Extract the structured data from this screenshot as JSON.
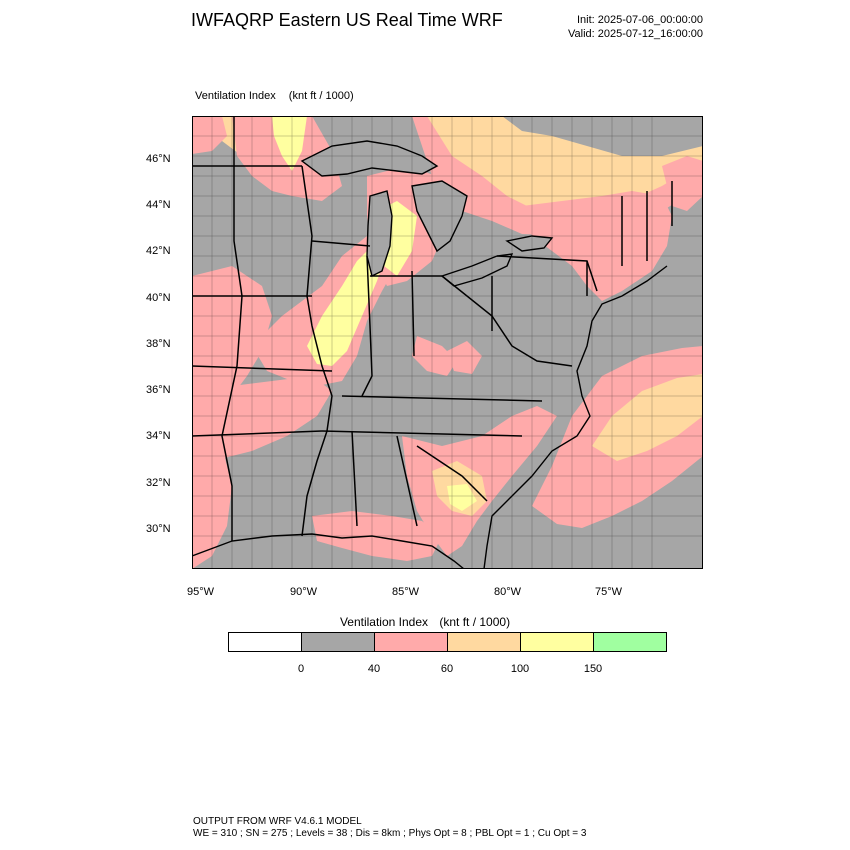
{
  "header": {
    "title": "IWFAQRP Eastern US Real Time WRF",
    "init": "Init: 2025-07-06_00:00:00",
    "valid": "Valid: 2025-07-12_16:00:00"
  },
  "map": {
    "variable": "Ventilation Index",
    "units": "(knt ft / 1000)",
    "lat_labels": [
      "46°N",
      "44°N",
      "42°N",
      "40°N",
      "38°N",
      "36°N",
      "34°N",
      "32°N",
      "30°N"
    ],
    "lon_labels": [
      "95°W",
      "90°W",
      "85°W",
      "80°W",
      "75°W"
    ],
    "colors": {
      "land_low": "#a6a6a6",
      "band_40_60": "#ffaaaa",
      "band_60_100": "#ffd9a0",
      "band_100_150": "#ffffa0",
      "water_low": "#a6a6a6"
    }
  },
  "legend": {
    "title": "Ventilation Index",
    "units": "(knt ft / 1000)",
    "swatches": [
      "#ffffff",
      "#a6a6a6",
      "#ffaaaa",
      "#ffd9a0",
      "#ffffa0",
      "#a0ffa0"
    ],
    "tick_labels": [
      "0",
      "40",
      "60",
      "100",
      "150"
    ]
  },
  "footer": {
    "line1": "OUTPUT FROM WRF V4.6.1 MODEL",
    "line2": "WE = 310 ; SN = 275 ; Levels = 38 ; Dis = 8km ; Phys Opt = 8 ; PBL Opt = 1 ; Cu Opt = 3"
  }
}
